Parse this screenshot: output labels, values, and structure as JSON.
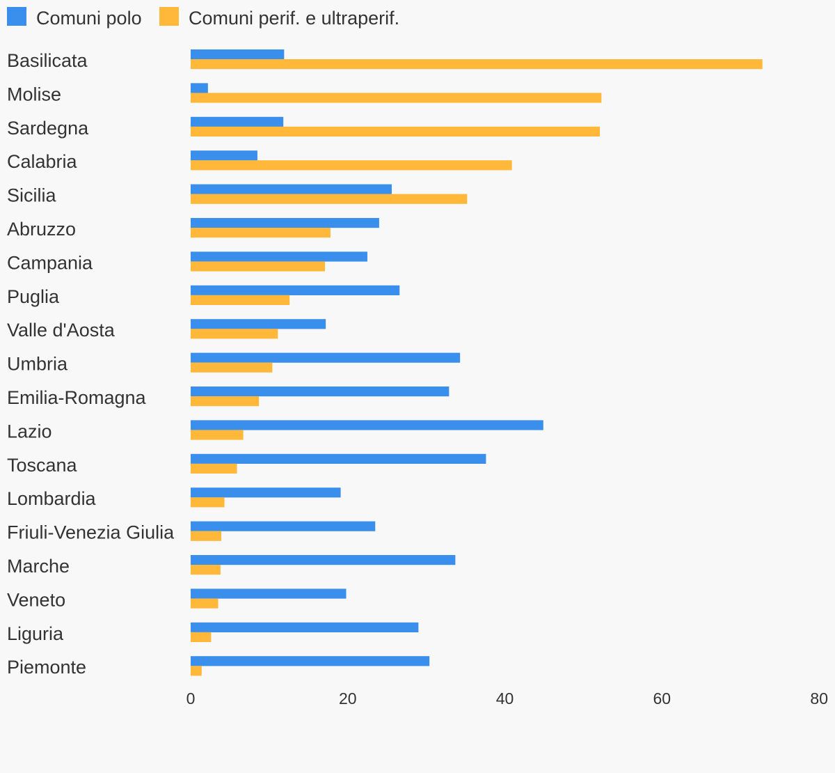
{
  "chart_data": {
    "type": "bar",
    "orientation": "horizontal",
    "categories": [
      "Basilicata",
      "Molise",
      "Sardegna",
      "Calabria",
      "Sicilia",
      "Abruzzo",
      "Campania",
      "Puglia",
      "Valle d'Aosta",
      "Umbria",
      "Emilia-Romagna",
      "Lazio",
      "Toscana",
      "Lombardia",
      "Friuli-Venezia Giulia",
      "Marche",
      "Veneto",
      "Liguria",
      "Piemonte"
    ],
    "series": [
      {
        "name": "Comuni polo",
        "color": "#3a8fec",
        "values": [
          11.9,
          2.2,
          11.8,
          8.5,
          25.6,
          24.0,
          22.5,
          26.6,
          17.2,
          34.3,
          32.9,
          44.9,
          37.6,
          19.1,
          23.5,
          33.7,
          19.8,
          29.0,
          30.4
        ]
      },
      {
        "name": "Comuni perif. e ultraperif.",
        "color": "#ffb83a",
        "values": [
          72.8,
          52.3,
          52.1,
          40.9,
          35.2,
          17.8,
          17.1,
          12.6,
          11.1,
          10.4,
          8.7,
          6.7,
          5.9,
          4.3,
          3.9,
          3.8,
          3.5,
          2.6,
          1.4
        ]
      }
    ],
    "xlim": [
      0,
      80
    ],
    "xticks": [
      "0",
      "20",
      "40",
      "60",
      "80"
    ],
    "grid": false,
    "legend_position": "top-left"
  }
}
